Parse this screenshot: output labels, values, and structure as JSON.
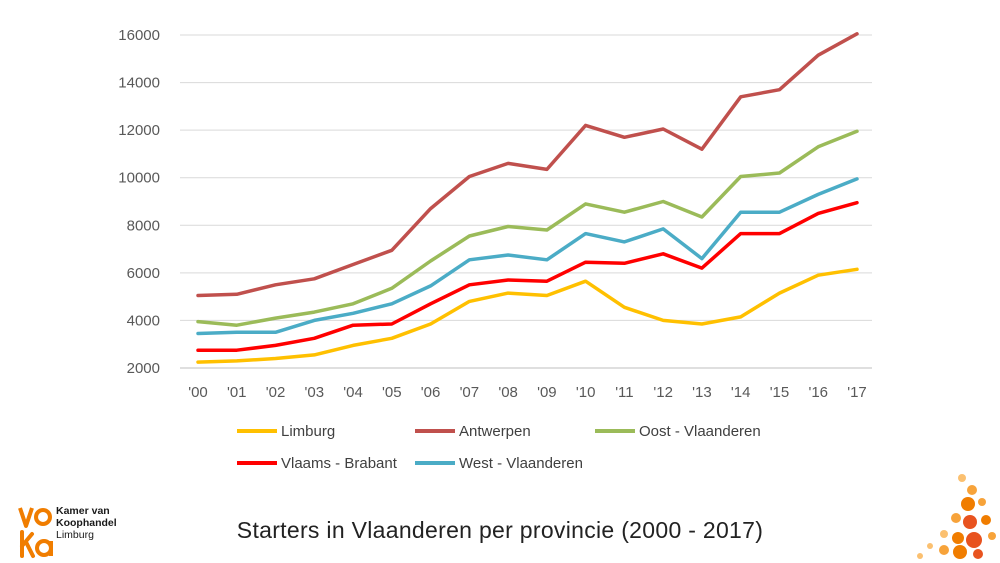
{
  "chart_data": {
    "type": "line",
    "title": "Starters in Vlaanderen per provincie (2000 - 2017)",
    "xlabel": "",
    "ylabel": "",
    "categories": [
      "'00",
      "'01",
      "'02",
      "'03",
      "'04",
      "'05",
      "'06",
      "'07",
      "'08",
      "'09",
      "'10",
      "'11",
      "'12",
      "'13",
      "'14",
      "'15",
      "'16",
      "'17"
    ],
    "ylim": [
      2000,
      16000
    ],
    "yticks": [
      2000,
      4000,
      6000,
      8000,
      10000,
      12000,
      14000,
      16000
    ],
    "grid": true,
    "legend_position": "bottom",
    "series": [
      {
        "name": "Limburg",
        "color": "#FFC000",
        "values": [
          2250,
          2300,
          2400,
          2550,
          2950,
          3250,
          3850,
          4800,
          5150,
          5050,
          5650,
          4550,
          4000,
          3850,
          4150,
          5150,
          5900,
          6150
        ]
      },
      {
        "name": "Antwerpen",
        "color": "#C0504D",
        "values": [
          5050,
          5100,
          5500,
          5750,
          6350,
          6950,
          8700,
          10050,
          10600,
          10350,
          12200,
          11700,
          12050,
          11200,
          13400,
          13700,
          15150,
          16050
        ]
      },
      {
        "name": "Oost - Vlaanderen",
        "color": "#9BBB59",
        "values": [
          3950,
          3800,
          4100,
          4350,
          4700,
          5350,
          6500,
          7550,
          7950,
          7800,
          8900,
          8550,
          9000,
          8350,
          10050,
          10200,
          11300,
          11950
        ]
      },
      {
        "name": "Vlaams - Brabant",
        "color": "#FF0000",
        "values": [
          2750,
          2750,
          2950,
          3250,
          3800,
          3850,
          4700,
          5500,
          5700,
          5650,
          6450,
          6400,
          6800,
          6200,
          7650,
          7650,
          8500,
          8950
        ]
      },
      {
        "name": "West - Vlaanderen",
        "color": "#4BACC6",
        "values": [
          3450,
          3500,
          3500,
          4000,
          4300,
          4700,
          5450,
          6550,
          6750,
          6550,
          7650,
          7300,
          7850,
          6600,
          8550,
          8550,
          9300,
          9950
        ]
      }
    ]
  },
  "caption": "Starters in Vlaanderen per provincie (2000 - 2017)",
  "brand": {
    "logo_text": "voka",
    "line1": "Kamer van",
    "line2": "Koophandel",
    "line3": "Limburg",
    "accent_color": "#F07D00"
  }
}
